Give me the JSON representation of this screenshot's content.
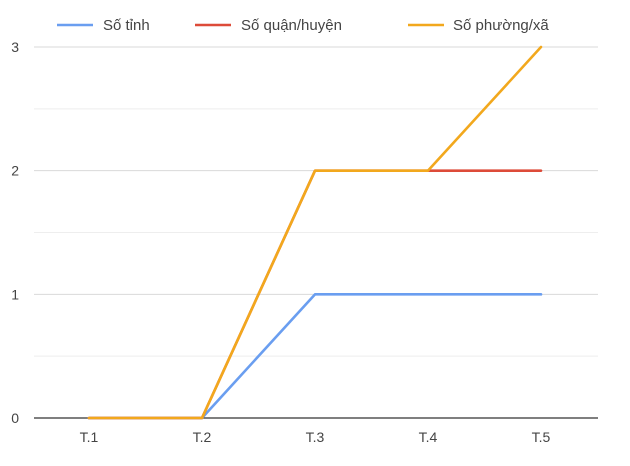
{
  "chart_data": {
    "type": "line",
    "x": [
      "T.1",
      "T.2",
      "T.3",
      "T.4",
      "T.5"
    ],
    "series": [
      {
        "name": "Số tỉnh",
        "values": [
          0,
          0,
          1,
          1,
          1
        ],
        "color": "#6a9ef0"
      },
      {
        "name": "Số quận/huyện",
        "values": [
          0,
          0,
          2,
          2,
          2
        ],
        "color": "#dd4b39"
      },
      {
        "name": "Số phường/xã",
        "values": [
          0,
          0,
          2,
          2,
          3
        ],
        "color": "#f2a81d"
      }
    ],
    "ylim": [
      0,
      3
    ],
    "yticks": [
      "0",
      "1",
      "2",
      "3"
    ],
    "grid": true,
    "legend_position": "top",
    "colors": {
      "grid_major": "#d9d9d9",
      "grid_minor": "#eeeeee",
      "baseline": "#333333",
      "text": "#444444"
    }
  }
}
